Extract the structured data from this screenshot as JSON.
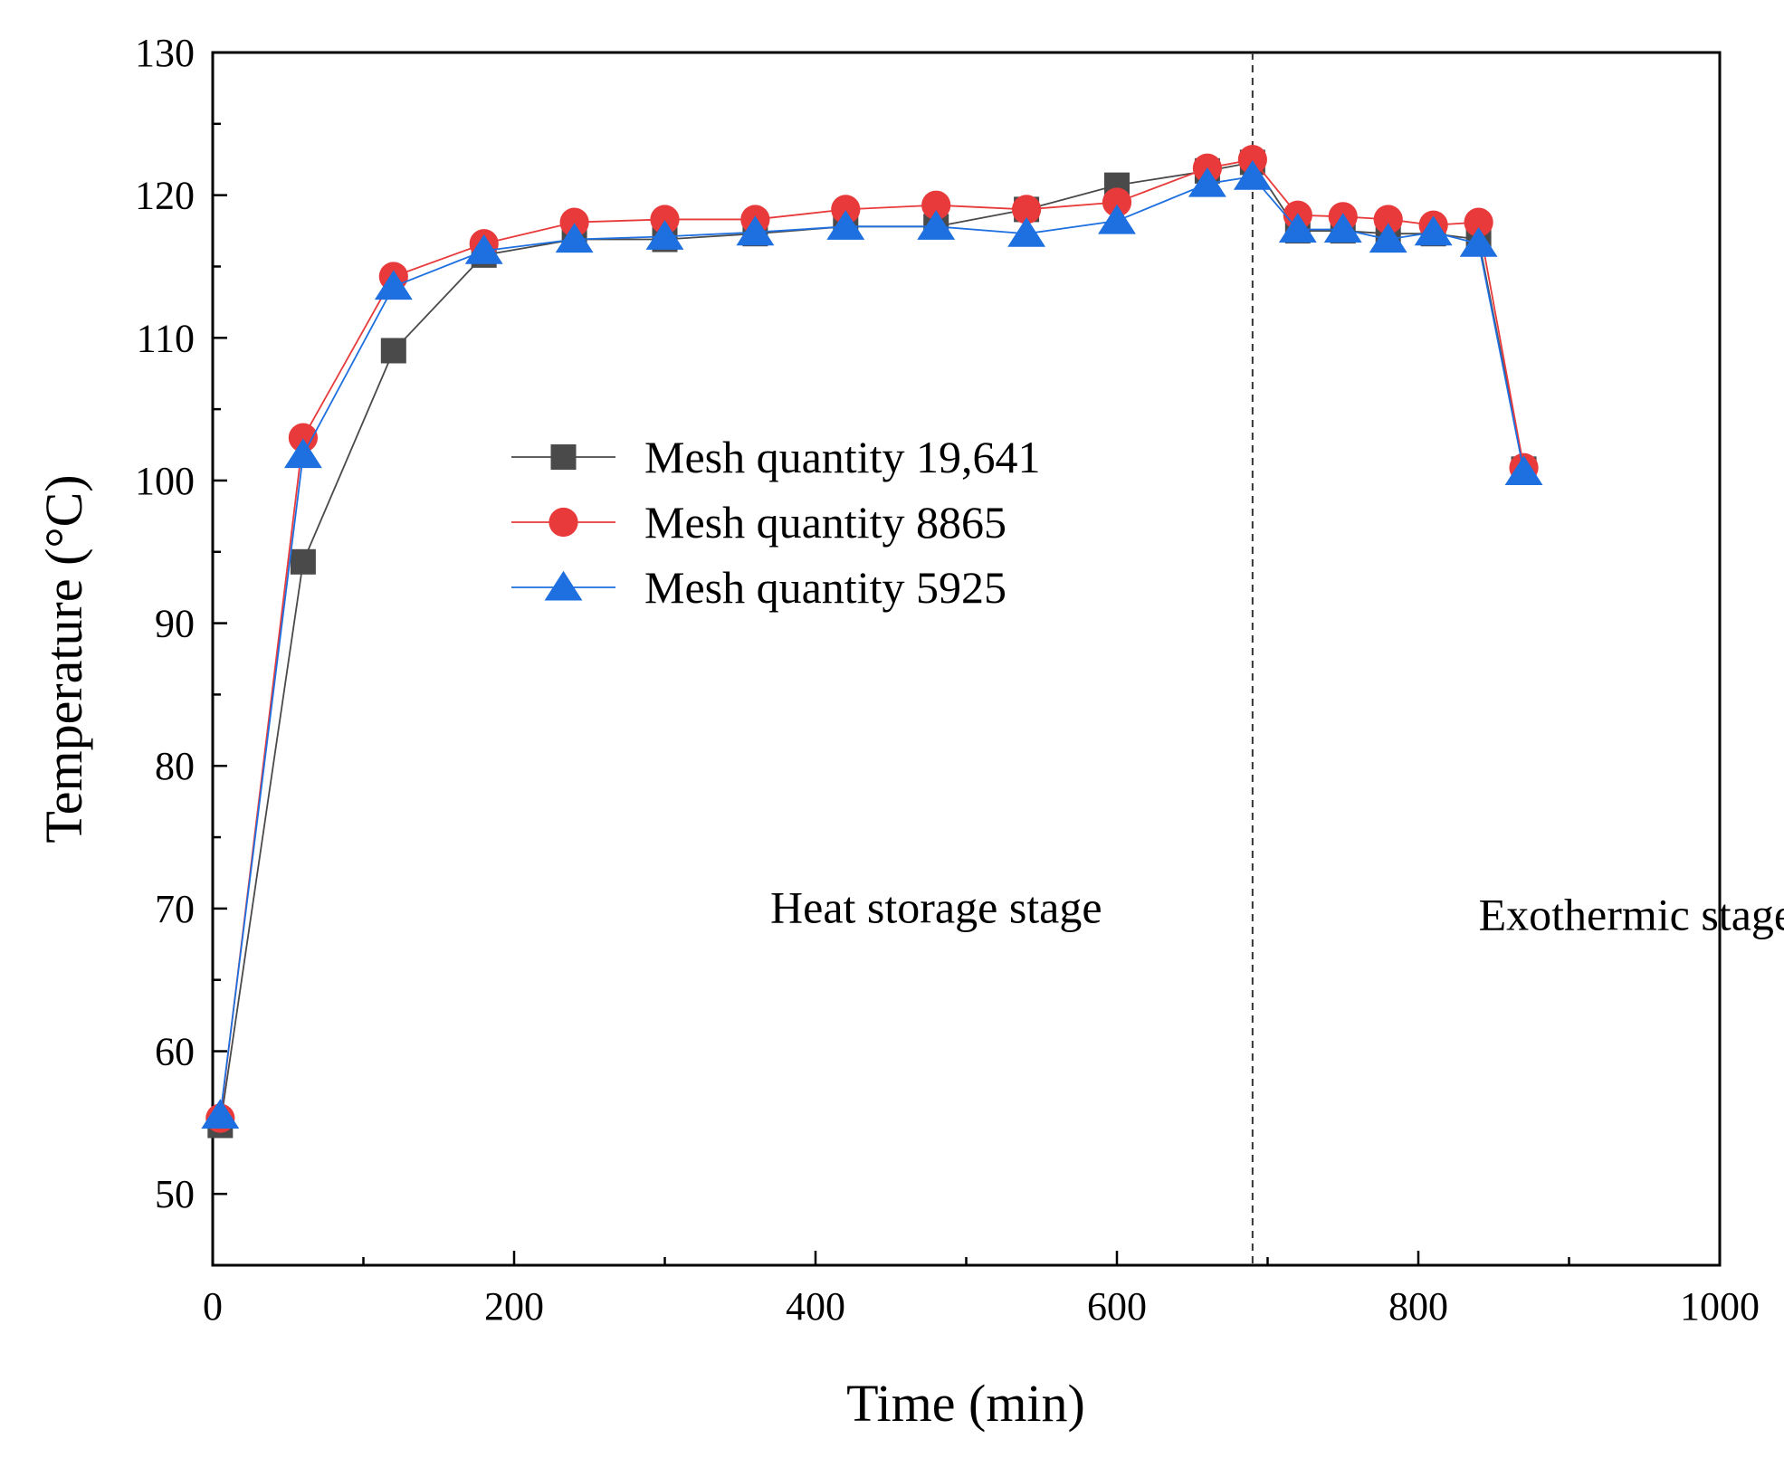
{
  "chart_data": {
    "type": "line",
    "title": "",
    "xlabel": "Time (min)",
    "ylabel": "Temperature (°C)",
    "xlim": [
      0,
      1000
    ],
    "ylim": [
      45,
      130
    ],
    "x_ticks": [
      0,
      200,
      400,
      600,
      800,
      1000
    ],
    "y_ticks": [
      50,
      60,
      70,
      80,
      90,
      100,
      110,
      120,
      130
    ],
    "grid": false,
    "legend_position": "center-left",
    "stage_divider_x": 690,
    "annotations": [
      {
        "text": "Heat storage stage",
        "x": 370,
        "y": 69
      },
      {
        "text": "Exothermic stage",
        "x": 840,
        "y": 68.5
      }
    ],
    "series": [
      {
        "name": "Mesh quantity 19,641",
        "color": "#4a4a4a",
        "marker": "square",
        "x": [
          5,
          60,
          120,
          180,
          240,
          300,
          360,
          420,
          480,
          540,
          600,
          660,
          690,
          720,
          750,
          780,
          810,
          840,
          870
        ],
        "y": [
          54.8,
          94.3,
          109.1,
          115.8,
          116.9,
          116.9,
          117.3,
          117.8,
          117.8,
          119.0,
          120.7,
          121.7,
          122.3,
          117.5,
          117.5,
          117.3,
          117.3,
          116.9,
          100.8
        ]
      },
      {
        "name": "Mesh quantity 8865",
        "color": "#e83a3a",
        "marker": "circle",
        "x": [
          5,
          60,
          120,
          180,
          240,
          300,
          360,
          420,
          480,
          540,
          600,
          660,
          690,
          720,
          750,
          780,
          810,
          840,
          870
        ],
        "y": [
          55.3,
          103.0,
          114.3,
          116.6,
          118.1,
          118.3,
          118.3,
          119.0,
          119.3,
          119.0,
          119.5,
          121.9,
          122.5,
          118.6,
          118.5,
          118.3,
          117.9,
          118.1,
          100.9
        ]
      },
      {
        "name": "Mesh quantity 5925",
        "color": "#1e6fe0",
        "marker": "triangle",
        "x": [
          5,
          60,
          120,
          180,
          240,
          300,
          360,
          420,
          480,
          540,
          600,
          660,
          690,
          720,
          750,
          780,
          810,
          840,
          870
        ],
        "y": [
          55.5,
          101.8,
          113.6,
          116.1,
          116.9,
          117.1,
          117.4,
          117.8,
          117.8,
          117.3,
          118.2,
          120.8,
          121.3,
          117.6,
          117.6,
          116.9,
          117.4,
          116.6,
          100.6
        ]
      }
    ]
  }
}
